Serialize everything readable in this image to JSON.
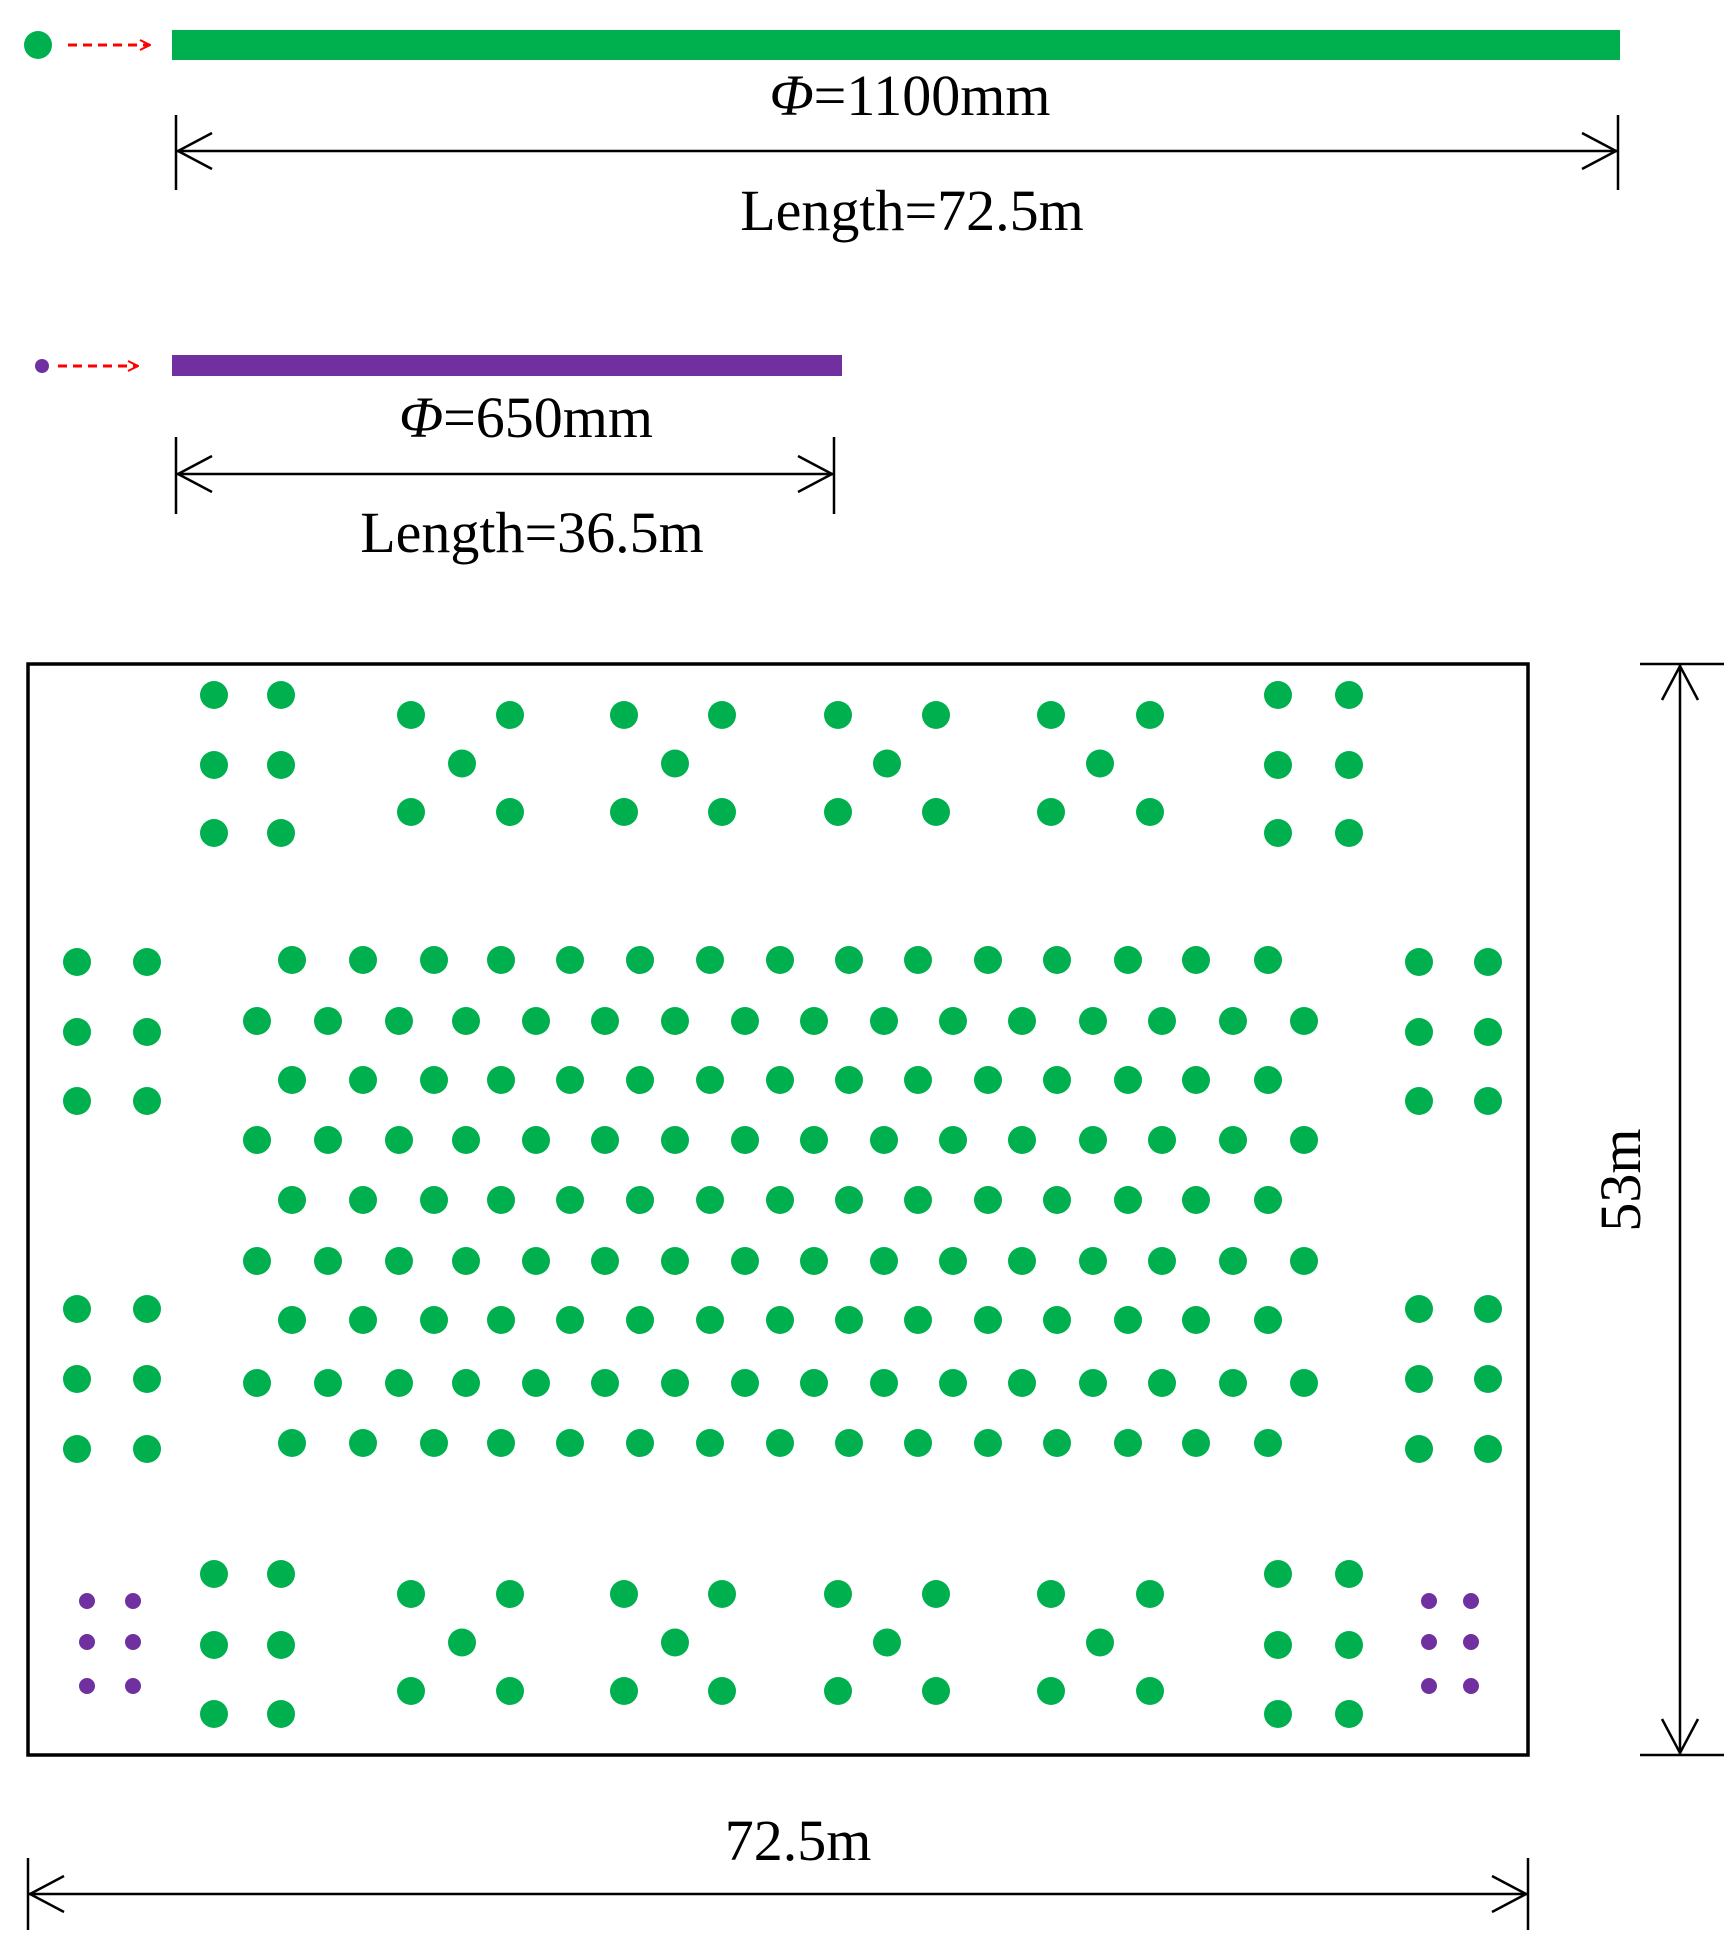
{
  "colors": {
    "large_pile": "#00b04f",
    "small_pile": "#7030a0",
    "arrow": "#ff0000",
    "line": "#000000"
  },
  "legend": {
    "large": {
      "phi_symbol": "Φ",
      "diameter_text": "=1100mm",
      "length_text": "Length=72.5m"
    },
    "small": {
      "phi_symbol": "Φ",
      "diameter_text": "=650mm",
      "length_text": "Length=36.5m"
    }
  },
  "plan": {
    "width_label": "72.5m",
    "height_label": "53m"
  }
}
